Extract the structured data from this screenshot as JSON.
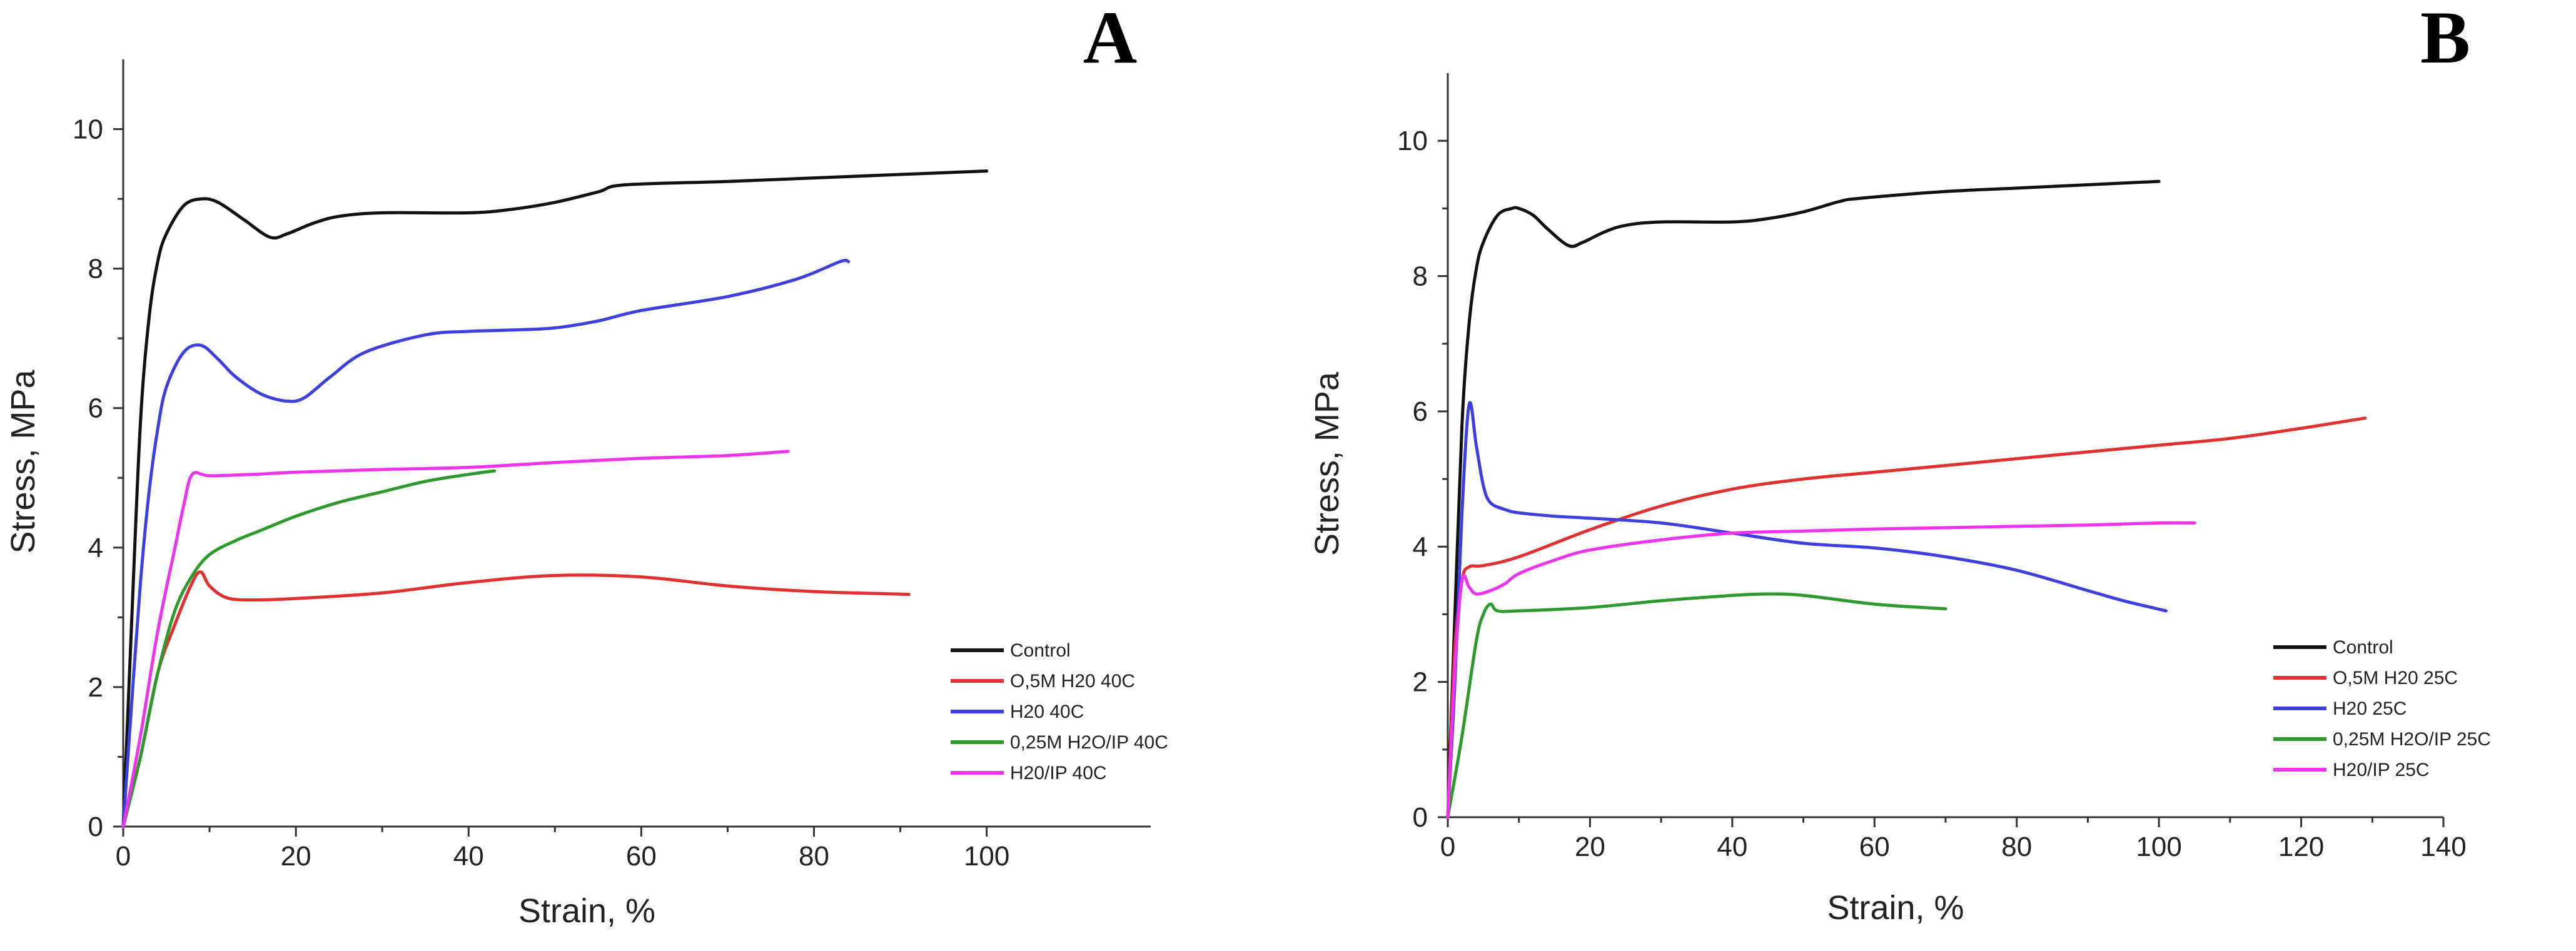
{
  "chart_data": [
    {
      "type": "line",
      "panel": "A",
      "title": "",
      "xlabel": "Strain, %",
      "ylabel": "Stress, MPa",
      "xlim": [
        0,
        119
      ],
      "ylim": [
        0,
        11
      ],
      "xticks": [
        "0",
        "20",
        "40",
        "60",
        "80",
        "100"
      ],
      "yticks": [
        "0",
        "2",
        "4",
        "6",
        "8",
        "10"
      ],
      "legend_position": "bottom-right",
      "grid": false,
      "series": [
        {
          "name": "Control",
          "color": "#111111",
          "x": [
            0,
            1,
            2,
            3,
            4,
            5,
            7,
            9,
            11,
            14,
            17,
            19,
            22,
            25,
            30,
            40,
            45,
            50,
            55,
            58,
            70,
            80,
            90,
            100
          ],
          "y": [
            0,
            3.0,
            5.8,
            7.3,
            8.1,
            8.5,
            8.9,
            9.0,
            8.95,
            8.7,
            8.45,
            8.5,
            8.65,
            8.75,
            8.8,
            8.8,
            8.85,
            8.95,
            9.1,
            9.2,
            9.25,
            9.3,
            9.35,
            9.4
          ]
        },
        {
          "name": "O,5M H20 40C",
          "color": "#e03030",
          "x": [
            0,
            2,
            4,
            6,
            8,
            9,
            10,
            12,
            15,
            20,
            30,
            40,
            50,
            60,
            70,
            80,
            91
          ],
          "y": [
            0,
            1.0,
            2.2,
            2.9,
            3.5,
            3.65,
            3.45,
            3.28,
            3.25,
            3.27,
            3.35,
            3.5,
            3.6,
            3.58,
            3.45,
            3.37,
            3.33
          ]
        },
        {
          "name": "H20 40C",
          "color": "#3f3fe0",
          "x": [
            0,
            1,
            2,
            3,
            4,
            5,
            7,
            9,
            11,
            13,
            16,
            19,
            21,
            24,
            28,
            35,
            40,
            45,
            50,
            55,
            60,
            70,
            78,
            83,
            84
          ],
          "y": [
            0,
            1.8,
            3.5,
            4.8,
            5.7,
            6.3,
            6.8,
            6.9,
            6.7,
            6.45,
            6.2,
            6.1,
            6.15,
            6.45,
            6.8,
            7.05,
            7.1,
            7.12,
            7.15,
            7.25,
            7.4,
            7.6,
            7.85,
            8.1,
            8.1
          ]
        },
        {
          "name": "0,25M H2O/IP 40C",
          "color": "#2e9a2e",
          "x": [
            0,
            2,
            4,
            6,
            8,
            10,
            13,
            16,
            20,
            25,
            30,
            35,
            40,
            43
          ],
          "y": [
            0,
            1.0,
            2.2,
            3.1,
            3.6,
            3.9,
            4.1,
            4.25,
            4.45,
            4.65,
            4.8,
            4.95,
            5.05,
            5.1
          ]
        },
        {
          "name": "H20/IP 40C",
          "color": "#ee33ee",
          "x": [
            0,
            2,
            4,
            6,
            7,
            8,
            10,
            15,
            20,
            30,
            40,
            50,
            60,
            70,
            77
          ],
          "y": [
            0,
            1.3,
            2.8,
            4.0,
            4.6,
            5.05,
            5.03,
            5.05,
            5.08,
            5.12,
            5.15,
            5.22,
            5.28,
            5.32,
            5.38
          ]
        }
      ]
    },
    {
      "type": "line",
      "panel": "B",
      "title": "",
      "xlabel": "Strain, %",
      "ylabel": "Stress, MPa",
      "xlim": [
        0,
        140
      ],
      "ylim": [
        0,
        11
      ],
      "xticks": [
        "0",
        "20",
        "40",
        "60",
        "80",
        "100",
        "120",
        "140"
      ],
      "yticks": [
        "0",
        "2",
        "4",
        "6",
        "8",
        "10"
      ],
      "legend_position": "bottom-right",
      "grid": false,
      "series": [
        {
          "name": "Control",
          "color": "#111111",
          "x": [
            0,
            1,
            2,
            3,
            4,
            5,
            7,
            9,
            10,
            12,
            14,
            17,
            19,
            22,
            25,
            30,
            40,
            45,
            50,
            55,
            58,
            70,
            80,
            90,
            100
          ],
          "y": [
            0,
            3.0,
            5.8,
            7.3,
            8.1,
            8.5,
            8.9,
            9.0,
            9.0,
            8.9,
            8.7,
            8.45,
            8.5,
            8.65,
            8.75,
            8.8,
            8.8,
            8.85,
            8.95,
            9.1,
            9.15,
            9.25,
            9.3,
            9.35,
            9.4
          ]
        },
        {
          "name": "O,5M H20 25C",
          "color": "#e03030",
          "x": [
            0,
            1,
            2,
            3,
            5,
            10,
            20,
            30,
            40,
            50,
            60,
            70,
            80,
            90,
            100,
            110,
            120,
            129
          ],
          "y": [
            0,
            2.5,
            3.5,
            3.7,
            3.72,
            3.85,
            4.25,
            4.6,
            4.85,
            5.0,
            5.1,
            5.2,
            5.3,
            5.4,
            5.5,
            5.6,
            5.75,
            5.9
          ]
        },
        {
          "name": "H20 25C",
          "color": "#3f3fe0",
          "x": [
            0,
            1,
            2,
            3,
            4,
            5,
            6,
            8,
            10,
            15,
            20,
            30,
            40,
            50,
            60,
            70,
            80,
            90,
            95,
            101
          ],
          "y": [
            0,
            2.0,
            4.5,
            6.1,
            5.5,
            4.9,
            4.65,
            4.55,
            4.5,
            4.45,
            4.42,
            4.35,
            4.2,
            4.05,
            3.98,
            3.85,
            3.65,
            3.35,
            3.2,
            3.05
          ]
        },
        {
          "name": "0,25M H2O/IP 25C",
          "color": "#2e9a2e",
          "x": [
            0,
            2,
            4,
            5,
            6,
            7,
            10,
            20,
            30,
            40,
            45,
            50,
            60,
            70
          ],
          "y": [
            0,
            1.2,
            2.6,
            3.0,
            3.15,
            3.05,
            3.05,
            3.1,
            3.2,
            3.28,
            3.3,
            3.28,
            3.15,
            3.08
          ]
        },
        {
          "name": "H20/IP 25C",
          "color": "#ee33ee",
          "x": [
            0,
            1,
            2,
            3,
            4,
            6,
            8,
            10,
            15,
            20,
            30,
            40,
            50,
            60,
            70,
            80,
            90,
            100,
            105
          ],
          "y": [
            0,
            2.2,
            3.5,
            3.4,
            3.3,
            3.35,
            3.45,
            3.6,
            3.8,
            3.95,
            4.1,
            4.2,
            4.23,
            4.26,
            4.28,
            4.3,
            4.32,
            4.35,
            4.35
          ]
        }
      ]
    }
  ]
}
